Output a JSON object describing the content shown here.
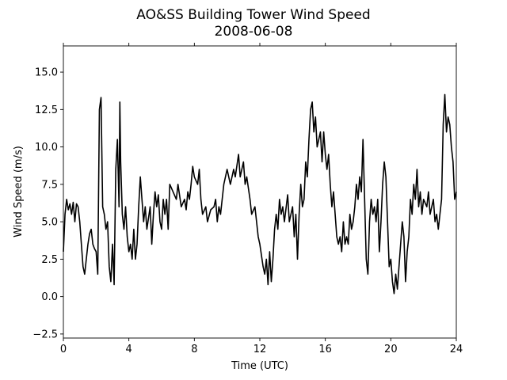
{
  "chart_data": {
    "type": "line",
    "title": "AO&SS Building Tower Wind Speed",
    "subtitle": "2008-06-08",
    "xlabel": "Time (UTC)",
    "ylabel": "Wind Speed (m/s)",
    "xlim": [
      0,
      24
    ],
    "xticks": [
      0,
      4,
      8,
      12,
      16,
      20,
      24
    ],
    "ylim": [
      -2.77,
      16.75
    ],
    "yticks": [
      {
        "value": -2.5,
        "label": "−2.5"
      },
      {
        "value": 0,
        "label": "0.0"
      },
      {
        "value": 2.5,
        "label": "2.5"
      },
      {
        "value": 5,
        "label": "5.0"
      },
      {
        "value": 7.5,
        "label": "7.5"
      },
      {
        "value": 10,
        "label": "10.0"
      },
      {
        "value": 12.5,
        "label": "12.5"
      },
      {
        "value": 15,
        "label": "15.0"
      }
    ],
    "grid": false,
    "x": [
      0,
      0.1,
      0.2,
      0.3,
      0.4,
      0.5,
      0.6,
      0.7,
      0.8,
      0.9,
      1.0,
      1.1,
      1.2,
      1.3,
      1.4,
      1.5,
      1.6,
      1.7,
      1.8,
      1.9,
      2.0,
      2.1,
      2.2,
      2.3,
      2.4,
      2.5,
      2.6,
      2.7,
      2.8,
      2.9,
      3.0,
      3.1,
      3.2,
      3.3,
      3.4,
      3.45,
      3.5,
      3.6,
      3.7,
      3.8,
      3.9,
      4.0,
      4.1,
      4.2,
      4.3,
      4.4,
      4.5,
      4.6,
      4.7,
      4.8,
      4.9,
      5.0,
      5.1,
      5.3,
      5.4,
      5.5,
      5.6,
      5.7,
      5.8,
      5.9,
      6.0,
      6.1,
      6.2,
      6.3,
      6.4,
      6.5,
      6.7,
      6.9,
      7.0,
      7.2,
      7.4,
      7.5,
      7.6,
      7.7,
      7.8,
      7.9,
      8.0,
      8.2,
      8.3,
      8.4,
      8.5,
      8.7,
      8.8,
      9.0,
      9.2,
      9.3,
      9.4,
      9.5,
      9.6,
      9.8,
      10.0,
      10.2,
      10.4,
      10.5,
      10.7,
      10.8,
      11.0,
      11.1,
      11.2,
      11.4,
      11.5,
      11.7,
      11.8,
      11.9,
      12.0,
      12.2,
      12.3,
      12.4,
      12.5,
      12.6,
      12.7,
      12.8,
      12.9,
      13.0,
      13.1,
      13.2,
      13.3,
      13.4,
      13.5,
      13.7,
      13.8,
      14.0,
      14.1,
      14.2,
      14.3,
      14.4,
      14.5,
      14.6,
      14.7,
      14.8,
      14.9,
      15.0,
      15.1,
      15.2,
      15.3,
      15.4,
      15.5,
      15.7,
      15.8,
      15.9,
      16.0,
      16.1,
      16.2,
      16.3,
      16.4,
      16.5,
      16.6,
      16.7,
      16.8,
      16.9,
      17.0,
      17.1,
      17.2,
      17.3,
      17.4,
      17.5,
      17.6,
      17.7,
      17.8,
      17.9,
      18.0,
      18.1,
      18.2,
      18.3,
      18.4,
      18.5,
      18.6,
      18.7,
      18.8,
      18.9,
      19.0,
      19.1,
      19.2,
      19.3,
      19.4,
      19.5,
      19.6,
      19.7,
      19.8,
      19.9,
      20.0,
      20.1,
      20.2,
      20.3,
      20.4,
      20.5,
      20.6,
      20.7,
      20.8,
      20.9,
      21.0,
      21.1,
      21.2,
      21.3,
      21.4,
      21.5,
      21.6,
      21.7,
      21.8,
      21.9,
      22.0,
      22.2,
      22.3,
      22.4,
      22.6,
      22.7,
      22.8,
      22.9,
      23.0,
      23.1,
      23.2,
      23.3,
      23.4,
      23.5,
      23.6,
      23.7,
      23.8,
      23.9,
      24.0
    ],
    "series": [
      {
        "name": "Wind Speed",
        "color": "#000000",
        "values": [
          3.0,
          5.5,
          6.5,
          5.8,
          6.2,
          5.5,
          6.3,
          5.0,
          6.2,
          6.0,
          5.0,
          3.5,
          2.0,
          1.5,
          2.5,
          3.5,
          4.2,
          4.5,
          3.5,
          3.2,
          3.0,
          1.5,
          12.5,
          13.3,
          6.0,
          5.5,
          4.5,
          5.0,
          2.0,
          1.0,
          3.5,
          0.8,
          8.5,
          10.5,
          6.0,
          13.0,
          9.0,
          5.5,
          4.5,
          6.0,
          4.0,
          3.0,
          3.5,
          2.5,
          4.5,
          2.5,
          3.5,
          6.0,
          8.0,
          6.5,
          5.0,
          6.0,
          4.5,
          6.0,
          3.5,
          5.5,
          7.0,
          6.0,
          6.8,
          5.0,
          4.5,
          6.5,
          5.5,
          6.5,
          4.5,
          7.5,
          7.0,
          6.5,
          7.5,
          6.0,
          6.5,
          5.8,
          7.0,
          6.5,
          7.5,
          8.7,
          8.0,
          7.5,
          8.5,
          6.5,
          5.5,
          6.0,
          5.0,
          5.8,
          6.0,
          6.5,
          5.0,
          6.0,
          5.5,
          7.5,
          8.5,
          7.5,
          8.5,
          8.0,
          9.5,
          8.0,
          9.0,
          7.5,
          8.0,
          6.5,
          5.5,
          6.0,
          5.0,
          4.0,
          3.5,
          2.0,
          1.5,
          2.5,
          0.8,
          3.0,
          1.0,
          2.5,
          4.5,
          5.5,
          4.5,
          6.5,
          5.5,
          6.0,
          5.0,
          6.8,
          5.0,
          6.0,
          4.0,
          5.5,
          2.5,
          5.5,
          7.5,
          6.0,
          6.5,
          9.0,
          8.0,
          10.5,
          12.5,
          13.0,
          11.0,
          12.0,
          10.0,
          11.0,
          9.0,
          11.0,
          9.5,
          8.5,
          9.5,
          7.5,
          6.0,
          7.0,
          5.5,
          4.0,
          3.5,
          4.0,
          3.0,
          5.0,
          3.5,
          4.0,
          3.5,
          5.5,
          4.5,
          5.0,
          6.0,
          7.5,
          6.5,
          8.0,
          7.0,
          10.5,
          6.5,
          2.5,
          1.5,
          5.0,
          6.5,
          5.5,
          6.0,
          5.0,
          6.5,
          3.0,
          5.0,
          7.5,
          9.0,
          8.0,
          5.0,
          2.0,
          2.5,
          1.0,
          0.2,
          1.5,
          0.5,
          2.0,
          3.5,
          5.0,
          4.0,
          1.0,
          3.0,
          4.0,
          6.5,
          5.5,
          7.5,
          6.5,
          8.5,
          6.0,
          7.0,
          5.5,
          6.5,
          6.0,
          7.0,
          5.5,
          6.5,
          5.0,
          5.5,
          4.5,
          5.5,
          6.5,
          11.5,
          13.5,
          11.0,
          12.0,
          11.5,
          10.0,
          9.0,
          6.5,
          7.0
        ]
      }
    ]
  }
}
